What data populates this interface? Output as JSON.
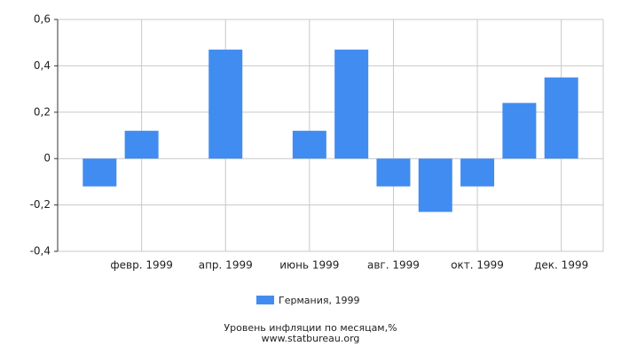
{
  "chart_data": {
    "type": "bar",
    "title": "Уровень инфляции по месяцам,%",
    "subtitle": "www.statbureau.org",
    "categories": [
      null,
      "февр. 1999",
      null,
      "апр. 1999",
      null,
      "июнь 1999",
      null,
      "авг. 1999",
      null,
      "окт. 1999",
      null,
      "дек. 1999"
    ],
    "series": [
      {
        "name": "Германия, 1999",
        "color": "#418cf0",
        "values": [
          -0.12,
          0.12,
          0,
          0.47,
          0,
          0.12,
          0.47,
          -0.12,
          -0.23,
          -0.12,
          0.24,
          0.35
        ]
      }
    ],
    "ylim": [
      -0.4,
      0.6
    ],
    "yticks": [
      {
        "value": -0.4,
        "label": "-0,4"
      },
      {
        "value": -0.2,
        "label": "-0,2"
      },
      0,
      {
        "value": 0.2,
        "label": "0,2"
      },
      {
        "value": 0.4,
        "label": "0,4"
      },
      {
        "value": 0.6,
        "label": "0,6"
      }
    ],
    "grid": true
  }
}
